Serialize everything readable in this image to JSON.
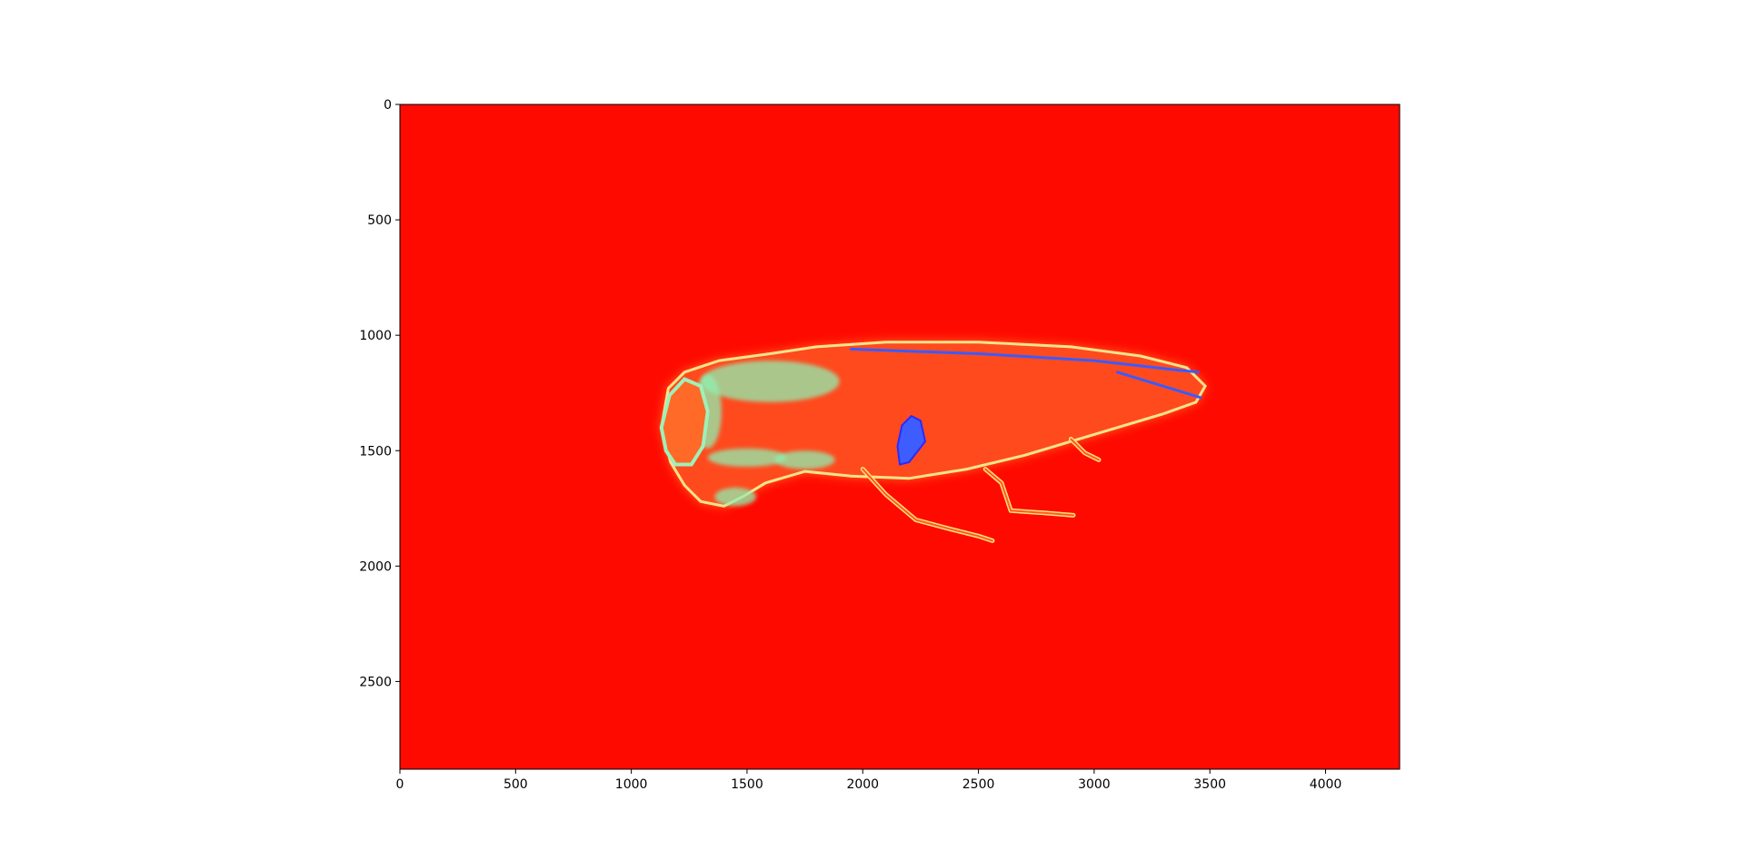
{
  "chart_data": {
    "type": "heatmap",
    "colormap": "rainbow",
    "background_color": "#ff0a00",
    "image_extent": {
      "width": 4320,
      "height": 2880
    },
    "xlim": [
      0,
      4320
    ],
    "ylim": [
      2880,
      0
    ],
    "x_ticks": [
      0,
      500,
      1000,
      1500,
      2000,
      2500,
      3000,
      3500,
      4000
    ],
    "y_ticks": [
      0,
      500,
      1000,
      1500,
      2000,
      2500
    ],
    "x_tick_labels": [
      "0",
      "500",
      "1000",
      "1500",
      "2000",
      "2500",
      "3000",
      "3500",
      "4000"
    ],
    "y_tick_labels": [
      "0",
      "500",
      "1000",
      "1500",
      "2000",
      "2500"
    ],
    "grid": false,
    "subject": {
      "body_outline": [
        [
          1130,
          1400
        ],
        [
          1160,
          1230
        ],
        [
          1230,
          1160
        ],
        [
          1380,
          1110
        ],
        [
          1600,
          1080
        ],
        [
          1800,
          1050
        ],
        [
          2100,
          1030
        ],
        [
          2500,
          1030
        ],
        [
          2900,
          1050
        ],
        [
          3200,
          1090
        ],
        [
          3400,
          1140
        ],
        [
          3480,
          1220
        ],
        [
          3440,
          1290
        ],
        [
          3300,
          1340
        ],
        [
          3100,
          1400
        ],
        [
          2900,
          1460
        ],
        [
          2700,
          1520
        ],
        [
          2450,
          1580
        ],
        [
          2200,
          1620
        ],
        [
          1950,
          1610
        ],
        [
          1750,
          1590
        ],
        [
          1580,
          1640
        ],
        [
          1480,
          1700
        ],
        [
          1400,
          1740
        ],
        [
          1300,
          1720
        ],
        [
          1230,
          1650
        ],
        [
          1170,
          1550
        ]
      ],
      "head_outline": [
        [
          1130,
          1400
        ],
        [
          1165,
          1260
        ],
        [
          1230,
          1190
        ],
        [
          1300,
          1220
        ],
        [
          1330,
          1330
        ],
        [
          1310,
          1480
        ],
        [
          1260,
          1560
        ],
        [
          1190,
          1560
        ],
        [
          1150,
          1500
        ]
      ],
      "dark_spot": [
        [
          2170,
          1390
        ],
        [
          2210,
          1350
        ],
        [
          2250,
          1370
        ],
        [
          2270,
          1460
        ],
        [
          2200,
          1550
        ],
        [
          2160,
          1560
        ],
        [
          2150,
          1480
        ]
      ],
      "legs": [
        [
          [
            2000,
            1580
          ],
          [
            2100,
            1690
          ],
          [
            2230,
            1800
          ],
          [
            2380,
            1840
          ],
          [
            2500,
            1870
          ],
          [
            2560,
            1890
          ]
        ],
        [
          [
            2530,
            1580
          ],
          [
            2600,
            1640
          ],
          [
            2640,
            1760
          ],
          [
            2790,
            1770
          ],
          [
            2910,
            1780
          ]
        ],
        [
          [
            2900,
            1450
          ],
          [
            2960,
            1510
          ],
          [
            3020,
            1540
          ]
        ]
      ],
      "stripes": [
        [
          [
            1950,
            1060
          ],
          [
            2500,
            1080
          ],
          [
            3000,
            1110
          ],
          [
            3350,
            1150
          ],
          [
            3450,
            1160
          ]
        ],
        [
          [
            3100,
            1160
          ],
          [
            3460,
            1270
          ]
        ]
      ],
      "cyan_patches": [
        {
          "cx": 1600,
          "cy": 1200,
          "rx": 300,
          "ry": 90
        },
        {
          "cx": 1330,
          "cy": 1330,
          "rx": 60,
          "ry": 160
        },
        {
          "cx": 1500,
          "cy": 1530,
          "rx": 170,
          "ry": 40
        },
        {
          "cx": 1750,
          "cy": 1540,
          "rx": 130,
          "ry": 40
        },
        {
          "cx": 1450,
          "cy": 1700,
          "rx": 90,
          "ry": 40
        }
      ]
    }
  }
}
